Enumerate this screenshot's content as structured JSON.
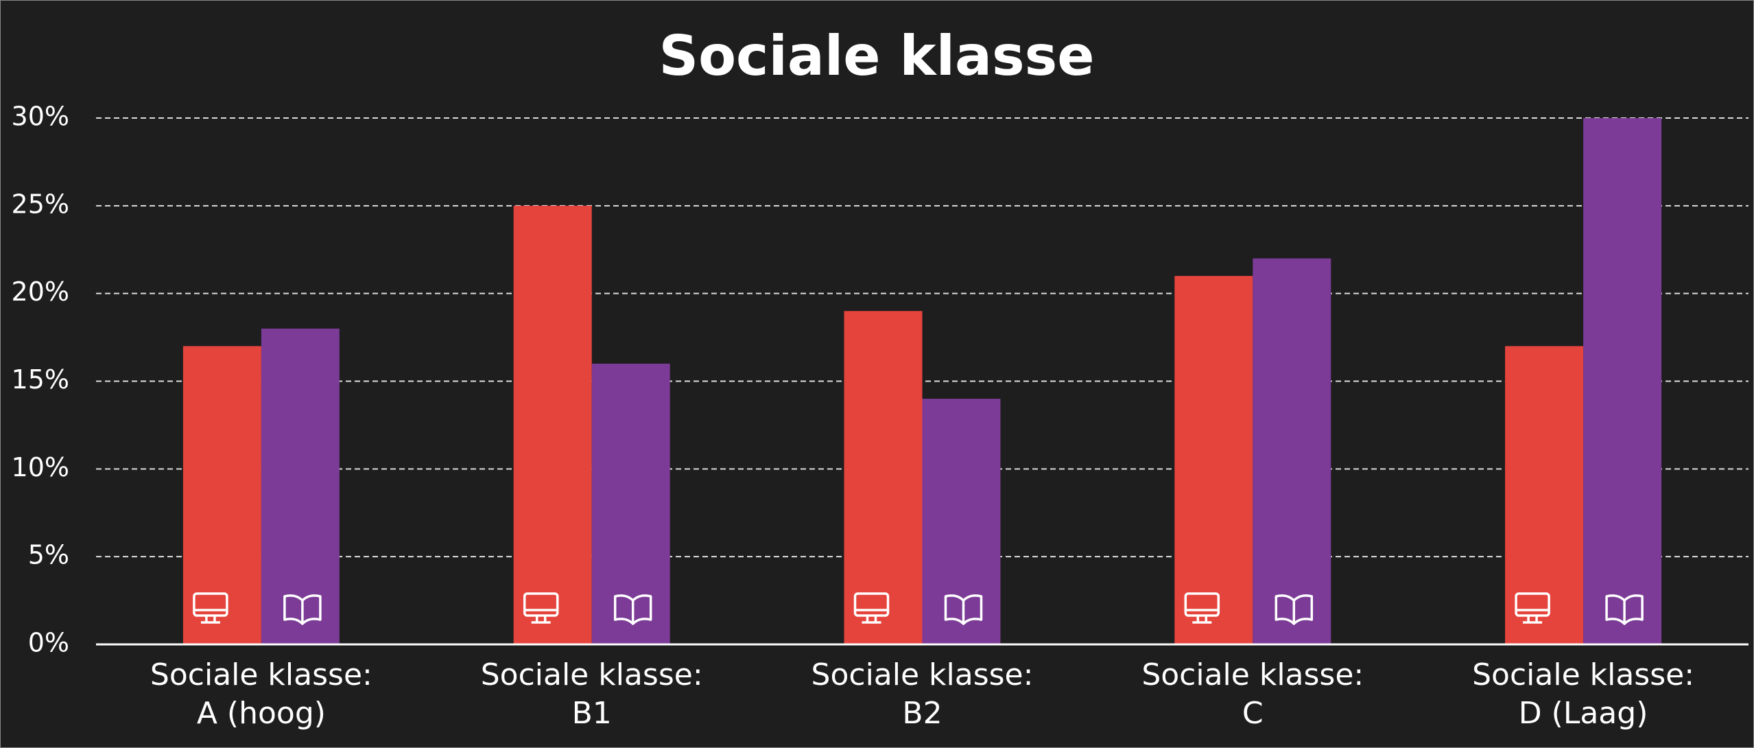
{
  "chart_data": {
    "type": "bar",
    "title": "Sociale klasse",
    "categories": [
      "Sociale klasse:\nA (hoog)",
      "Sociale klasse:\nB1",
      "Sociale klasse:\nB2",
      "Sociale klasse:\nC",
      "Sociale klasse:\nD (Laag)"
    ],
    "series": [
      {
        "color": "#e5443d",
        "values": [
          17,
          25,
          19,
          21,
          17
        ]
      },
      {
        "color": "#7b3b96",
        "values": [
          18,
          16,
          14,
          22,
          30
        ]
      }
    ],
    "ylim": [
      0,
      30
    ],
    "yticks": [
      {
        "value": 0,
        "label": "0%"
      },
      {
        "value": 5,
        "label": "5%"
      },
      {
        "value": 10,
        "label": "10%"
      },
      {
        "value": 15,
        "label": "15%"
      },
      {
        "value": 20,
        "label": "20%"
      },
      {
        "value": 25,
        "label": "25%"
      },
      {
        "value": 30,
        "label": "30%"
      }
    ],
    "grid": true
  }
}
